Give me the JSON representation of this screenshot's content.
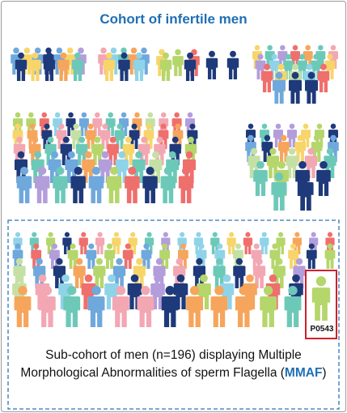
{
  "title": "Cohort of infertile men",
  "highlight": {
    "label": "P0543"
  },
  "caption": {
    "parts": [
      "Sub-cohort of men (n=196) displaying Multiple Morphological Abnormalities of sperm Flagella (",
      "MMAF",
      ")"
    ]
  }
}
